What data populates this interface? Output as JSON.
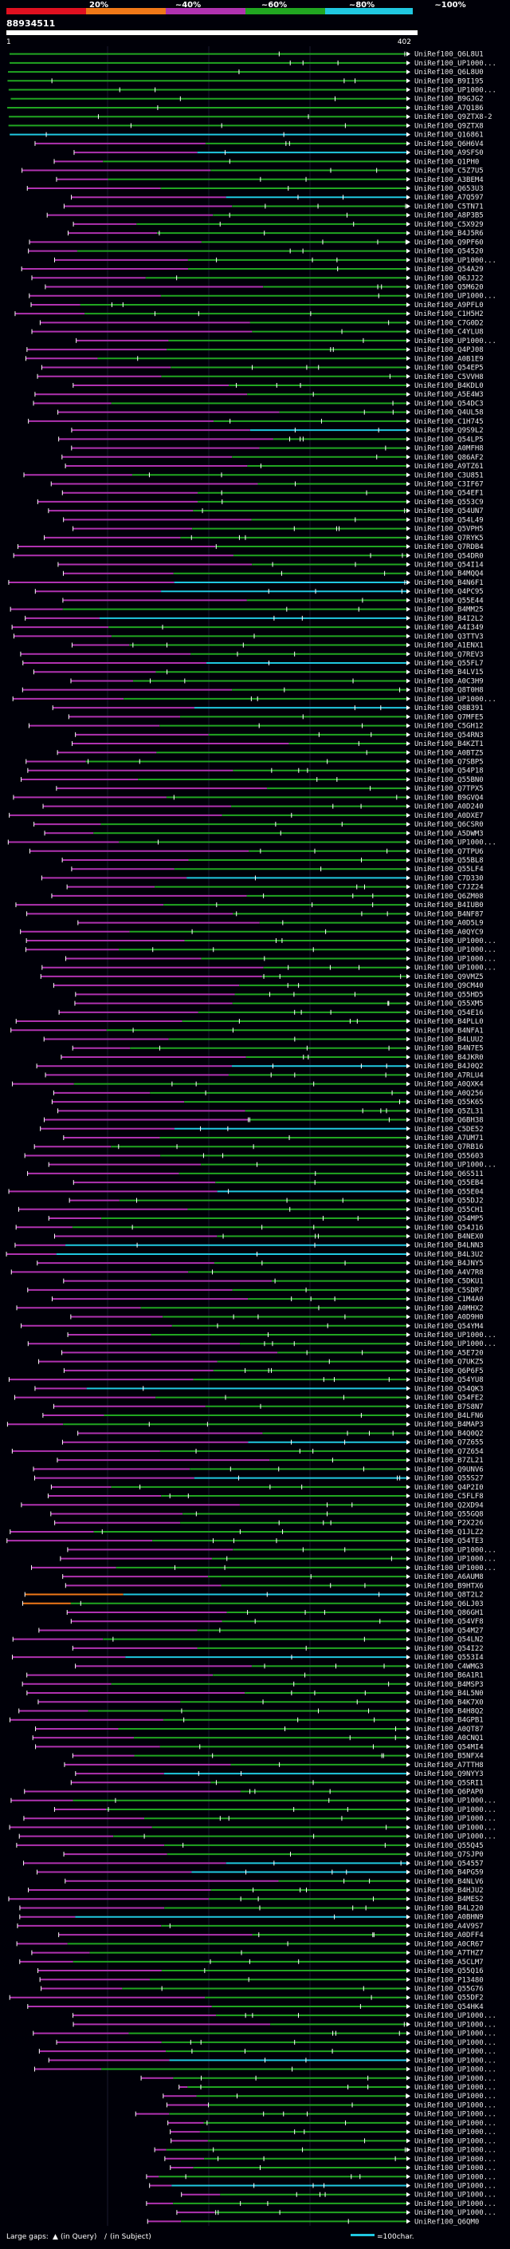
{
  "chart_data": {
    "type": "alignment-overview",
    "title": "88934511",
    "query_start": "1",
    "query_end": "402",
    "identity_ticks": [
      "20%",
      "~40%",
      "~60%",
      "~80%",
      "~100%"
    ],
    "identity_colors": {
      "lt20": "#e01020",
      "p20_40": "#f07818",
      "p40_60": "#b032b0",
      "p60_80": "#21a621",
      "p80_100": "#20c8e0"
    },
    "legend": {
      "gaps_label": "Large gaps:",
      "query_gap_label": "(in Query)",
      "subject_gap_label": "(in Subject)",
      "scale_label": "=100char."
    },
    "hits": [
      "UniRef100_Q6L8U1",
      "UniRef100_UP1000...",
      "UniRef100_Q6L8U0",
      "UniRef100_B9I195",
      "UniRef100_UP1000...",
      "UniRef100_B9GJG2",
      "UniRef100_A7Q186",
      "UniRef100_Q9ZTX8-2",
      "UniRef100_Q9ZTX8",
      "UniRef100_Q16861",
      "UniRef100_Q6H6V4",
      "UniRef100_A9SFS0",
      "UniRef100_Q1PH0",
      "UniRef100_C5Z7U5",
      "UniRef100_A3BEM4",
      "UniRef100_Q653U3",
      "UniRef100_A7Q597",
      "UniRef100_C5TN71",
      "UniRef100_A8P3B5",
      "UniRef100_C5X929",
      "UniRef100_B4J5R6",
      "UniRef100_Q9PF60",
      "UniRef100_Q54520",
      "UniRef100_UP1000...",
      "UniRef100_Q54A29",
      "UniRef100_Q6JJ22",
      "UniRef100_Q5M620",
      "UniRef100_UP1000...",
      "UniRef100_A9PFL0",
      "UniRef100_C1H5H2",
      "UniRef100_C7G0D2",
      "UniRef100_C4YLU8",
      "UniRef100_UP1000...",
      "UniRef100_Q4PJ08",
      "UniRef100_A0B1E9",
      "UniRef100_Q54EP5",
      "UniRef100_C5VVH8",
      "UniRef100_B4KDL0",
      "UniRef100_A5E4W3",
      "UniRef100_Q54DC3",
      "UniRef100_Q4UL58",
      "UniRef100_C1H745",
      "UniRef100_Q9S9L2",
      "UniRef100_Q54LP5",
      "UniRef100_A0MFH8",
      "UniRef100_Q86AF2",
      "UniRef100_A9TZ61",
      "UniRef100_C3U851",
      "UniRef100_C3IF67",
      "UniRef100_Q54EF1",
      "UniRef100_Q553C9",
      "UniRef100_Q54UN7",
      "UniRef100_Q54L49",
      "UniRef100_Q5VPH5",
      "UniRef100_Q7RYK5",
      "UniRef100_Q7RDB4",
      "UniRef100_Q54DR0",
      "UniRef100_Q54I14",
      "UniRef100_B4MQQ4",
      "UniRef100_B4N6F1",
      "UniRef100_Q4PC95",
      "UniRef100_Q55E44",
      "UniRef100_B4MM25",
      "UniRef100_B4I2L2",
      "UniRef100_A4I349",
      "UniRef100_Q3TTV3",
      "UniRef100_A1ENX1",
      "UniRef100_Q7REV3",
      "UniRef100_Q55FL7",
      "UniRef100_B4LV15",
      "UniRef100_A0C3H9",
      "UniRef100_Q8T0H8",
      "UniRef100_UP1000...",
      "UniRef100_Q8B391",
      "UniRef100_Q7MFE5",
      "UniRef100_C5GH12",
      "UniRef100_Q54RN3",
      "UniRef100_B4KZT1",
      "UniRef100_A0BTZ5",
      "UniRef100_Q7SBP5",
      "UniRef100_Q54P18",
      "UniRef100_Q55BN0",
      "UniRef100_Q7TPX5",
      "UniRef100_B9GVQ4",
      "UniRef100_A0D240",
      "UniRef100_A0DXE7",
      "UniRef100_Q6CSR0",
      "UniRef100_A5DWM3",
      "UniRef100_UP1000...",
      "UniRef100_Q7TPU6",
      "UniRef100_Q55BL8",
      "UniRef100_Q55LF4",
      "UniRef100_C7D330",
      "UniRef100_C7JZ24",
      "UniRef100_Q6ZM08",
      "UniRef100_B4IUB0",
      "UniRef100_B4NF87",
      "UniRef100_A0D5L9",
      "UniRef100_A0QYC9",
      "UniRef100_UP1000...",
      "UniRef100_UP1000...",
      "UniRef100_UP1000...",
      "UniRef100_UP1000...",
      "UniRef100_Q9VMZ5",
      "UniRef100_Q9CM40",
      "UniRef100_Q55HD5",
      "UniRef100_Q55XM5",
      "UniRef100_Q54E16",
      "UniRef100_B4PLL0",
      "UniRef100_B4NFA1",
      "UniRef100_B4LUU2",
      "UniRef100_B4N7E5",
      "UniRef100_B4JKR0",
      "UniRef100_B4J0Q2",
      "UniRef100_A7RLU4",
      "UniRef100_A0QXK4",
      "UniRef100_A0Q256",
      "UniRef100_Q55K65",
      "UniRef100_Q5ZL31",
      "UniRef100_Q6BH38",
      "UniRef100_C5DE52",
      "UniRef100_A7UM71",
      "UniRef100_Q7RB16",
      "UniRef100_Q55603",
      "UniRef100_UP1000...",
      "UniRef100_Q6S511",
      "UniRef100_Q55EB4",
      "UniRef100_Q55E04",
      "UniRef100_Q55DJ2",
      "UniRef100_Q55CH1",
      "UniRef100_Q54MP5",
      "UniRef100_Q54J16",
      "UniRef100_B4NEX0",
      "UniRef100_B4LNN3",
      "UniRef100_B4L3U2",
      "UniRef100_B4JNY5",
      "UniRef100_A4V7R8",
      "UniRef100_C5DKU1",
      "UniRef100_C5SDR7",
      "UniRef100_C1M4A0",
      "UniRef100_A0MHX2",
      "UniRef100_A0D9H0",
      "UniRef100_Q54YM4",
      "UniRef100_UP1000...",
      "UniRef100_UP1000...",
      "UniRef100_A5E720",
      "UniRef100_Q7UKZ5",
      "UniRef100_Q6P6F5",
      "UniRef100_Q54YU8",
      "UniRef100_Q54QK3",
      "UniRef100_Q54FE2",
      "UniRef100_B7S8N7",
      "UniRef100_B4LFN6",
      "UniRef100_B4MAP3",
      "UniRef100_B4Q0Q2",
      "UniRef100_Q7Z655",
      "UniRef100_Q7Z654",
      "UniRef100_B7ZL21",
      "UniRef100_Q9UNV6",
      "UniRef100_Q55S27",
      "UniRef100_Q4P2I0",
      "UniRef100_C5FLF8",
      "UniRef100_Q2XD94",
      "UniRef100_Q55GQ8",
      "UniRef100_P2X226",
      "UniRef100_Q1JLZ2",
      "UniRef100_Q54TE3",
      "UniRef100_UP1000...",
      "UniRef100_UP1000...",
      "UniRef100_UP1000...",
      "UniRef100_A6AUM8",
      "UniRef100_B9HTX6",
      "UniRef100_Q8T2L2",
      "UniRef100_Q6LJ03",
      "UniRef100_Q86GH1",
      "UniRef100_Q54VF8",
      "UniRef100_Q54M27",
      "UniRef100_Q54LN2",
      "UniRef100_Q54I22",
      "UniRef100_Q553I4",
      "UniRef100_C4WMG3",
      "UniRef100_B6A1R1",
      "UniRef100_B4MSP3",
      "UniRef100_B4L5N0",
      "UniRef100_B4K7X0",
      "UniRef100_B4H8Q2",
      "UniRef100_B4GPB1",
      "UniRef100_A0QT87",
      "UniRef100_A0CNQ1",
      "UniRef100_Q54MI4",
      "UniRef100_B5NFX4",
      "UniRef100_A7TTH8",
      "UniRef100_Q9NYY3",
      "UniRef100_Q5SRI1",
      "UniRef100_Q6PAP0",
      "UniRef100_UP1000...",
      "UniRef100_UP1000...",
      "UniRef100_UP1000...",
      "UniRef100_UP1000...",
      "UniRef100_UP1000...",
      "UniRef100_Q55Q45",
      "UniRef100_Q7SJP0",
      "UniRef100_Q54557",
      "UniRef100_B4PG59",
      "UniRef100_B4NLV6",
      "UniRef100_B4HJU2",
      "UniRef100_B4MES2",
      "UniRef100_B4L220",
      "UniRef100_A0BHN9",
      "UniRef100_A4V9S7",
      "UniRef100_A0DFF4",
      "UniRef100_A0CR67",
      "UniRef100_A7THZ7",
      "UniRef100_A5CLM7",
      "UniRef100_Q55Q16",
      "UniRef100_P13480",
      "UniRef100_Q55G76",
      "UniRef100_Q55DF2",
      "UniRef100_Q54HK4",
      "UniRef100_UP1000...",
      "UniRef100_UP1000...",
      "UniRef100_UP1000...",
      "UniRef100_UP1000...",
      "UniRef100_UP1000...",
      "UniRef100_UP1000...",
      "UniRef100_UP1000...",
      "UniRef100_UP1000...",
      "UniRef100_UP1000...",
      "UniRef100_UP1000...",
      "UniRef100_UP1000...",
      "UniRef100_UP1000...",
      "UniRef100_UP1000...",
      "UniRef100_UP1000...",
      "UniRef100_UP1000...",
      "UniRef100_UP1000...",
      "UniRef100_UP1000...",
      "UniRef100_UP1000...",
      "UniRef100_UP1000...",
      "UniRef100_UP1000...",
      "UniRef100_UP1000...",
      "UniRef100_UP1000...",
      "UniRef100_UP1000...",
      "UniRef100_Q6QM0"
    ]
  }
}
